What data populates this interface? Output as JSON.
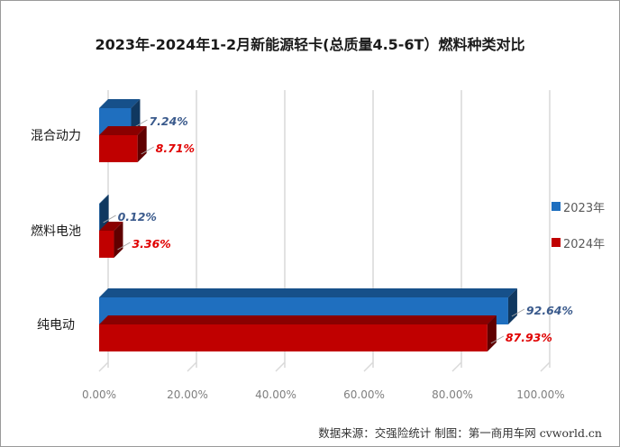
{
  "chart_data": {
    "type": "bar",
    "orientation": "horizontal",
    "title": "2023年-2024年1-2月新能源轻卡(总质量4.5-6T）燃料种类对比",
    "categories": [
      "混合动力",
      "燃料电池",
      "纯电动"
    ],
    "series": [
      {
        "name": "2023年",
        "color": "#1f6fbf",
        "values": [
          7.24,
          0.12,
          92.64
        ],
        "labels": [
          "7.24%",
          "0.12%",
          "92.64%"
        ],
        "label_color": "#3a5a8c"
      },
      {
        "name": "2024年",
        "color": "#c00000",
        "values": [
          8.71,
          3.36,
          87.93
        ],
        "labels": [
          "8.71%",
          "3.36%",
          "87.93%"
        ],
        "label_color": "#e00000"
      }
    ],
    "xlim": [
      0,
      100
    ],
    "x_ticks": [
      "0.00%",
      "20.00%",
      "40.00%",
      "60.00%",
      "80.00%",
      "100.00%"
    ],
    "grid": true,
    "legend_position": "right",
    "style": "3d"
  },
  "source_note": "数据来源：交强险统计 制图：第一商用车网 cvworld.cn"
}
